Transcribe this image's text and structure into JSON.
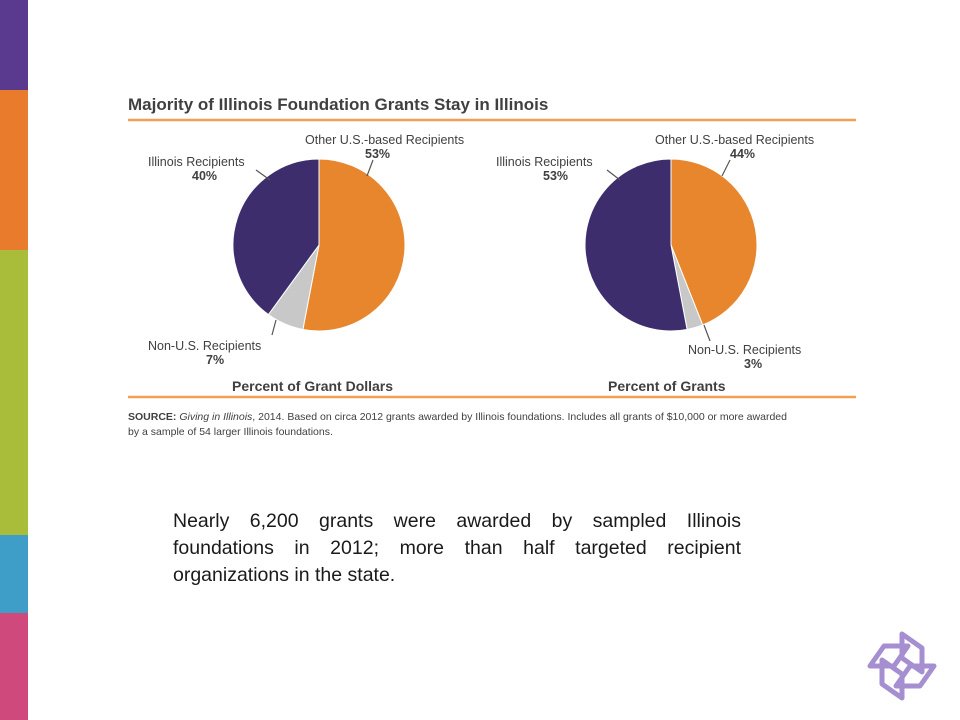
{
  "sidebar": {
    "colors": [
      "#5a3a8e",
      "#e87b2c",
      "#a9bd3b",
      "#3e9ec7",
      "#d0497c"
    ]
  },
  "figure": {
    "title": "Majority of Illinois Foundation Grants Stay in Illinois",
    "rule_color": "#f0a050",
    "source": {
      "label": "SOURCE:",
      "italic": "Giving in Illinois",
      "line1_rest": ", 2014. Based on circa 2012 grants awarded by Illinois foundations. Includes all grants of $10,000 or more awarded",
      "line2": "by a sample of 54 larger Illinois foundations."
    }
  },
  "colors": {
    "illinois": "#3d2d6d",
    "other_us": "#e8862e",
    "non_us": "#c8c8c8"
  },
  "chart_data": [
    {
      "type": "pie",
      "title": "Percent of Grant Dollars",
      "slices": [
        {
          "label": "Other U.S.-based Recipients",
          "value": 53,
          "display": "53%"
        },
        {
          "label": "Non-U.S. Recipients",
          "value": 7,
          "display": "7%"
        },
        {
          "label": "Illinois Recipients",
          "value": 40,
          "display": "40%"
        }
      ]
    },
    {
      "type": "pie",
      "title": "Percent of Grants",
      "slices": [
        {
          "label": "Other U.S.-based Recipients",
          "value": 44,
          "display": "44%"
        },
        {
          "label": "Non-U.S. Recipients",
          "value": 3,
          "display": "3%"
        },
        {
          "label": "Illinois Recipients",
          "value": 53,
          "display": "53%"
        }
      ]
    }
  ],
  "caption": "Nearly 6,200 grants were awarded by sampled Illinois foundations in 2012; more than half targeted recipient organizations in the state.",
  "logo": {
    "icon": "knot-logo-icon",
    "color": "#a58fd0"
  }
}
